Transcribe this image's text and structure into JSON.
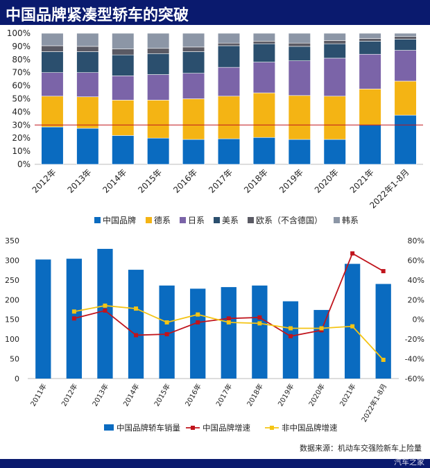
{
  "title": "中国品牌紧凑型轿车的突破",
  "source_note": "数据来源：机动车交强险新车上险量",
  "watermark": "汽车之家",
  "chart_data": [
    {
      "type": "bar",
      "stacked": true,
      "percent": true,
      "categories": [
        "2012年",
        "2013年",
        "2014年",
        "2015年",
        "2016年",
        "2017年",
        "2018年",
        "2019年",
        "2020年",
        "2021年",
        "2022年1-8月"
      ],
      "yticks": [
        "0%",
        "10%",
        "20%",
        "30%",
        "40%",
        "50%",
        "60%",
        "70%",
        "80%",
        "90%",
        "100%"
      ],
      "ylim": [
        0,
        100
      ],
      "reference_line": 30,
      "series": [
        {
          "name": "中国品牌",
          "color": "#0a6bc0",
          "values": [
            28.5,
            27.5,
            22,
            20,
            19,
            19.5,
            20.5,
            19,
            19,
            30,
            37.5
          ]
        },
        {
          "name": "德系",
          "color": "#f4b414",
          "values": [
            23.5,
            24,
            27,
            29,
            31,
            32.5,
            34,
            33.5,
            33,
            27.5,
            26
          ]
        },
        {
          "name": "日系",
          "color": "#7b64a8",
          "values": [
            18,
            18.5,
            18.5,
            19.5,
            19.5,
            22,
            23.5,
            26.5,
            29,
            26.5,
            23.5
          ]
        },
        {
          "name": "美系",
          "color": "#2b4f6e",
          "values": [
            16,
            16,
            16,
            16,
            16.5,
            16.5,
            14,
            11,
            11,
            10,
            8.5
          ]
        },
        {
          "name": "欧系（不含德国）",
          "color": "#5a5a64",
          "values": [
            4.5,
            4,
            4.5,
            4,
            3.5,
            2,
            2,
            2.5,
            2.5,
            2,
            2
          ]
        },
        {
          "name": "韩系",
          "color": "#8c96a6",
          "values": [
            9.5,
            10,
            12,
            11.5,
            10.5,
            7.5,
            6,
            7.5,
            5.5,
            4,
            2.5
          ]
        }
      ]
    },
    {
      "type": "bar+line",
      "categories": [
        "2011年",
        "2012年",
        "2013年",
        "2014年",
        "2015年",
        "2016年",
        "2017年",
        "2018年",
        "2019年",
        "2020年",
        "2021年",
        "2022年1-8月"
      ],
      "yticks_left": [
        "0",
        "50",
        "100",
        "150",
        "200",
        "250",
        "300",
        "350"
      ],
      "ylim_left": [
        0,
        350
      ],
      "yticks_right": [
        "-60%",
        "-40%",
        "-20%",
        "0%",
        "20%",
        "40%",
        "60%",
        "80%"
      ],
      "ylim_right": [
        -60,
        80
      ],
      "bar_series": {
        "name": "中国品牌轿车销量",
        "color": "#0a6bc0",
        "values": [
          302,
          304,
          329,
          276,
          236,
          228,
          232,
          236,
          196,
          174,
          291,
          240
        ]
      },
      "line_series": [
        {
          "name": "中国品牌增速",
          "color": "#c0141c",
          "values": [
            null,
            1,
            9,
            -16,
            -15,
            -3,
            1,
            2,
            -17,
            -11,
            67,
            49
          ]
        },
        {
          "name": "非中国品牌增速",
          "color": "#f4c414",
          "values": [
            null,
            8,
            14,
            11,
            -3,
            5,
            -3,
            -4,
            -9,
            -9,
            -7,
            -41
          ]
        }
      ]
    }
  ]
}
